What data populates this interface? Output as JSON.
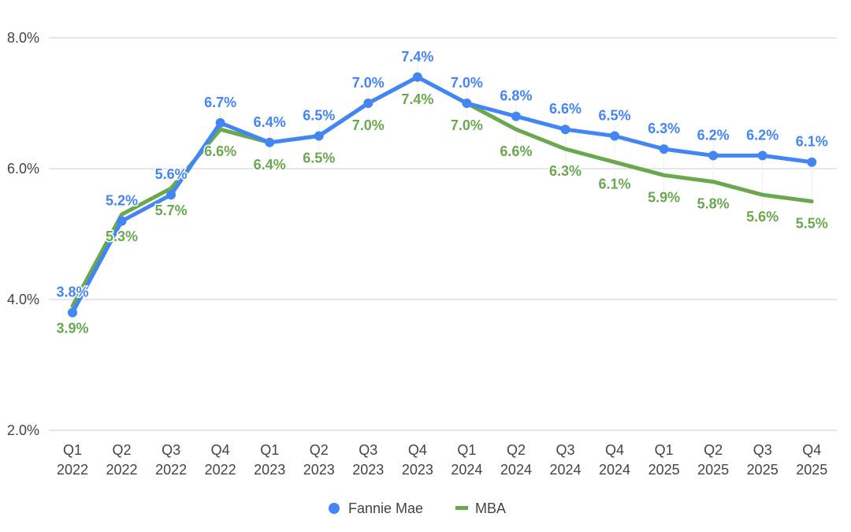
{
  "chart_data": {
    "type": "line",
    "title": "",
    "xlabel": "",
    "ylabel": "",
    "ylim": [
      2.0,
      8.0
    ],
    "yticks": [
      "2.0%",
      "4.0%",
      "6.0%",
      "8.0%"
    ],
    "ytick_values": [
      2.0,
      4.0,
      6.0,
      8.0
    ],
    "grid": true,
    "legend_position": "bottom",
    "categories": [
      [
        "Q1",
        "2022"
      ],
      [
        "Q2",
        "2022"
      ],
      [
        "Q3",
        "2022"
      ],
      [
        "Q4",
        "2022"
      ],
      [
        "Q1",
        "2023"
      ],
      [
        "Q2",
        "2023"
      ],
      [
        "Q3",
        "2023"
      ],
      [
        "Q4",
        "2023"
      ],
      [
        "Q1",
        "2024"
      ],
      [
        "Q2",
        "2024"
      ],
      [
        "Q3",
        "2024"
      ],
      [
        "Q4",
        "2024"
      ],
      [
        "Q1",
        "2025"
      ],
      [
        "Q2",
        "2025"
      ],
      [
        "Q3",
        "2025"
      ],
      [
        "Q4",
        "2025"
      ]
    ],
    "series": [
      {
        "name": "Fannie Mae",
        "color": "#4285f4",
        "marker": "circle",
        "values": [
          3.8,
          5.2,
          5.6,
          6.7,
          6.4,
          6.5,
          7.0,
          7.4,
          7.0,
          6.8,
          6.6,
          6.5,
          6.3,
          6.2,
          6.2,
          6.1
        ],
        "labels": [
          "3.8%",
          "5.2%",
          "5.6%",
          "6.7%",
          "6.4%",
          "6.5%",
          "7.0%",
          "7.4%",
          "7.0%",
          "6.8%",
          "6.6%",
          "6.5%",
          "6.3%",
          "6.2%",
          "6.2%",
          "6.1%"
        ]
      },
      {
        "name": "MBA",
        "color": "#6aa84f",
        "marker": "line",
        "values": [
          3.9,
          5.3,
          5.7,
          6.6,
          6.4,
          6.5,
          7.0,
          7.4,
          7.0,
          6.6,
          6.3,
          6.1,
          5.9,
          5.8,
          5.6,
          5.5
        ],
        "labels": [
          "3.9%",
          "5.3%",
          "5.7%",
          "6.6%",
          "6.4%",
          "6.5%",
          "7.0%",
          "7.4%",
          "7.0%",
          "6.6%",
          "6.3%",
          "6.1%",
          "5.9%",
          "5.8%",
          "5.6%",
          "5.5%"
        ]
      }
    ]
  }
}
